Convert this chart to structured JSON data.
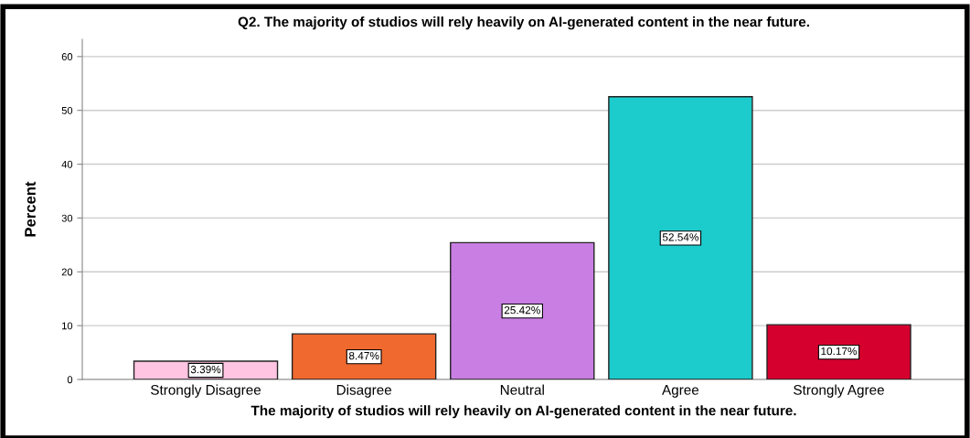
{
  "chart_data": {
    "type": "bar",
    "title": "Q2. The majority of studios will rely heavily on AI-generated content in the near future.",
    "xlabel": "The majority of studios will rely heavily on AI-generated content in the near future.",
    "ylabel": "Percent",
    "categories": [
      "Strongly Disagree",
      "Disagree",
      "Neutral",
      "Agree",
      "Strongly Agree"
    ],
    "values": [
      3.39,
      8.47,
      25.42,
      52.54,
      10.17
    ],
    "colors": [
      "#ffc4e1",
      "#f0692e",
      "#c97ee3",
      "#1ccccc",
      "#d6002f"
    ],
    "value_labels": [
      "3.39%",
      "8.47%",
      "25.42%",
      "52.54%",
      "10.17%"
    ],
    "ylim": [
      0,
      63.2
    ],
    "yticks": [
      0,
      10,
      20,
      30,
      40,
      50,
      60
    ],
    "grid": "y"
  }
}
